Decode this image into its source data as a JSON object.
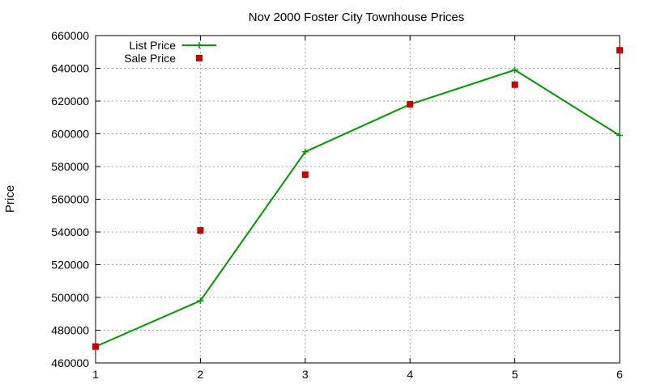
{
  "chart_data": {
    "type": "line",
    "title": "Nov 2000 Foster City Townhouse Prices",
    "xlabel": "",
    "ylabel": "Price",
    "x": [
      1,
      2,
      3,
      4,
      5,
      6
    ],
    "xlim": [
      1,
      6
    ],
    "ylim": [
      460000,
      660000
    ],
    "xticks": [
      1,
      2,
      3,
      4,
      5,
      6
    ],
    "yticks": [
      460000,
      480000,
      500000,
      520000,
      540000,
      560000,
      580000,
      600000,
      620000,
      640000,
      660000
    ],
    "grid": true,
    "legend_position": "top-left",
    "series": [
      {
        "name": "List Price",
        "style": "linespoints",
        "marker": "plus",
        "color": "#009900",
        "values": [
          470000,
          498000,
          589000,
          618000,
          639000,
          599000
        ]
      },
      {
        "name": "Sale Price",
        "style": "points",
        "marker": "square",
        "color": "#cc0000",
        "values": [
          470000,
          541000,
          575000,
          618000,
          630000,
          651000
        ]
      }
    ]
  }
}
